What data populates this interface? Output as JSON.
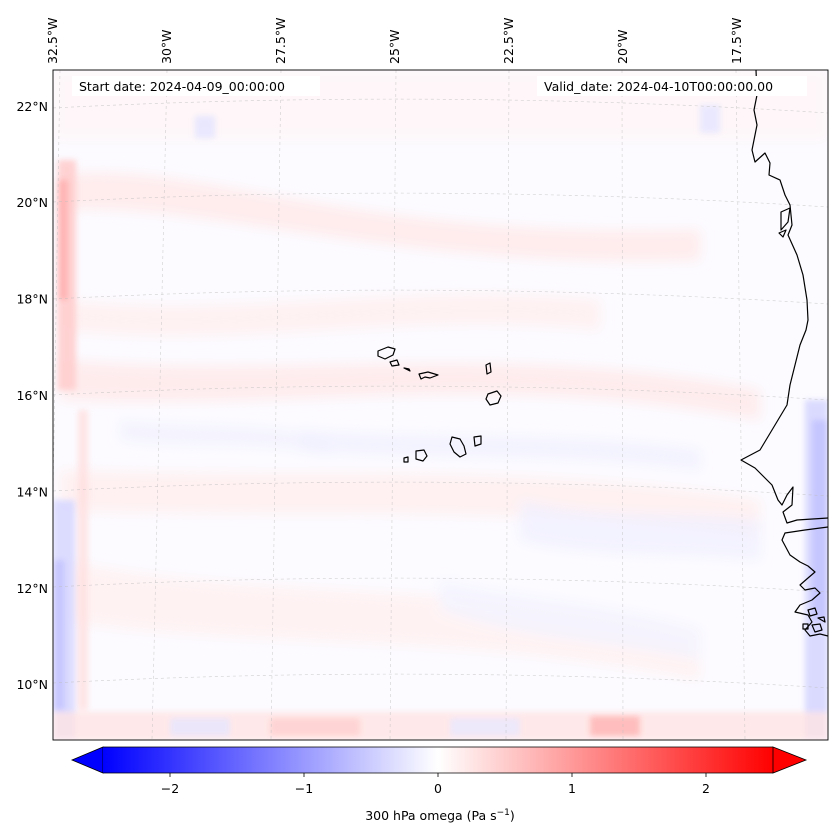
{
  "header": {
    "start_date": "Start date: 2024-04-09_00:00:00",
    "valid_date": "Valid_date: 2024-04-10T00:00:00.00"
  },
  "map": {
    "projection": "lambert-conformal",
    "lon_range": [
      -33,
      -15.5
    ],
    "lat_range": [
      8.8,
      22.8
    ],
    "gridlines": "dashed light gray",
    "lon_ticks": [
      {
        "value": -32.5,
        "label": "32.5°W"
      },
      {
        "value": -30,
        "label": "30°W"
      },
      {
        "value": -27.5,
        "label": "27.5°W"
      },
      {
        "value": -25,
        "label": "25°W"
      },
      {
        "value": -22.5,
        "label": "22.5°W"
      },
      {
        "value": -20,
        "label": "20°W"
      },
      {
        "value": -17.5,
        "label": "17.5°W"
      }
    ],
    "lat_ticks": [
      {
        "value": 22,
        "label": "22°N"
      },
      {
        "value": 20,
        "label": "20°N"
      },
      {
        "value": 18,
        "label": "18°N"
      },
      {
        "value": 16,
        "label": "16°N"
      },
      {
        "value": 14,
        "label": "14°N"
      },
      {
        "value": 12,
        "label": "12°N"
      },
      {
        "value": 10,
        "label": "10°N"
      }
    ],
    "field": "300 hPa omega, mostly near zero; weak positive bands across the basin, stronger values near the western and southern boundaries",
    "features": [
      "Cape Verde islands",
      "West African coastline"
    ]
  },
  "colorbar": {
    "colormap": "bwr",
    "min": -2.5,
    "max": 2.5,
    "extend": "both",
    "ticks": [
      {
        "value": -2,
        "label": "−2"
      },
      {
        "value": -1,
        "label": "−1"
      },
      {
        "value": 0,
        "label": "0"
      },
      {
        "value": 1,
        "label": "1"
      },
      {
        "value": 2,
        "label": "2"
      }
    ],
    "label_main": "300 hPa omega (Pa s",
    "label_sup": "−1",
    "label_end": ")",
    "colors": {
      "low": "#0000ff",
      "mid": "#ffffff",
      "high": "#ff0000"
    }
  }
}
